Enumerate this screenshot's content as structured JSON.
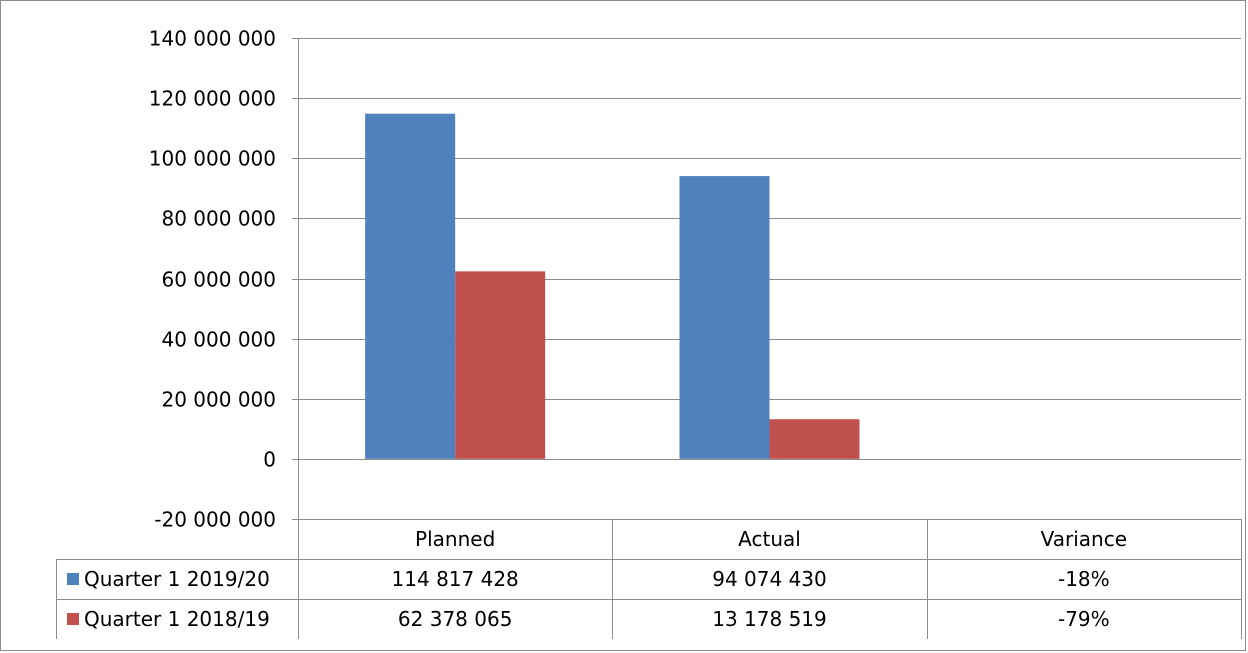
{
  "chart_data": {
    "type": "bar",
    "categories": [
      "Planned",
      "Actual",
      "Variance"
    ],
    "series": [
      {
        "name": "Quarter 1 2019/20",
        "color": "#4f81bd",
        "values": [
          114817428,
          94074430,
          null
        ],
        "table_values": [
          "114 817 428",
          "94 074 430",
          "-18%"
        ]
      },
      {
        "name": "Quarter 1 2018/19",
        "color": "#c0504d",
        "values": [
          62378065,
          13178519,
          null
        ],
        "table_values": [
          "62 378 065",
          "13 178 519",
          "-79%"
        ]
      }
    ],
    "ylim": [
      -20000000,
      140000000
    ],
    "y_ticks": [
      140000000,
      120000000,
      100000000,
      80000000,
      60000000,
      40000000,
      20000000,
      0,
      -20000000
    ],
    "y_tick_labels": [
      "140 000 000",
      "120 000 000",
      "100 000 000",
      "80 000 000",
      "60 000 000",
      "40 000 000",
      "20 000 000",
      "0",
      "-20 000 000"
    ],
    "grid": true,
    "legend_placement": "data-table",
    "data_table": true
  }
}
